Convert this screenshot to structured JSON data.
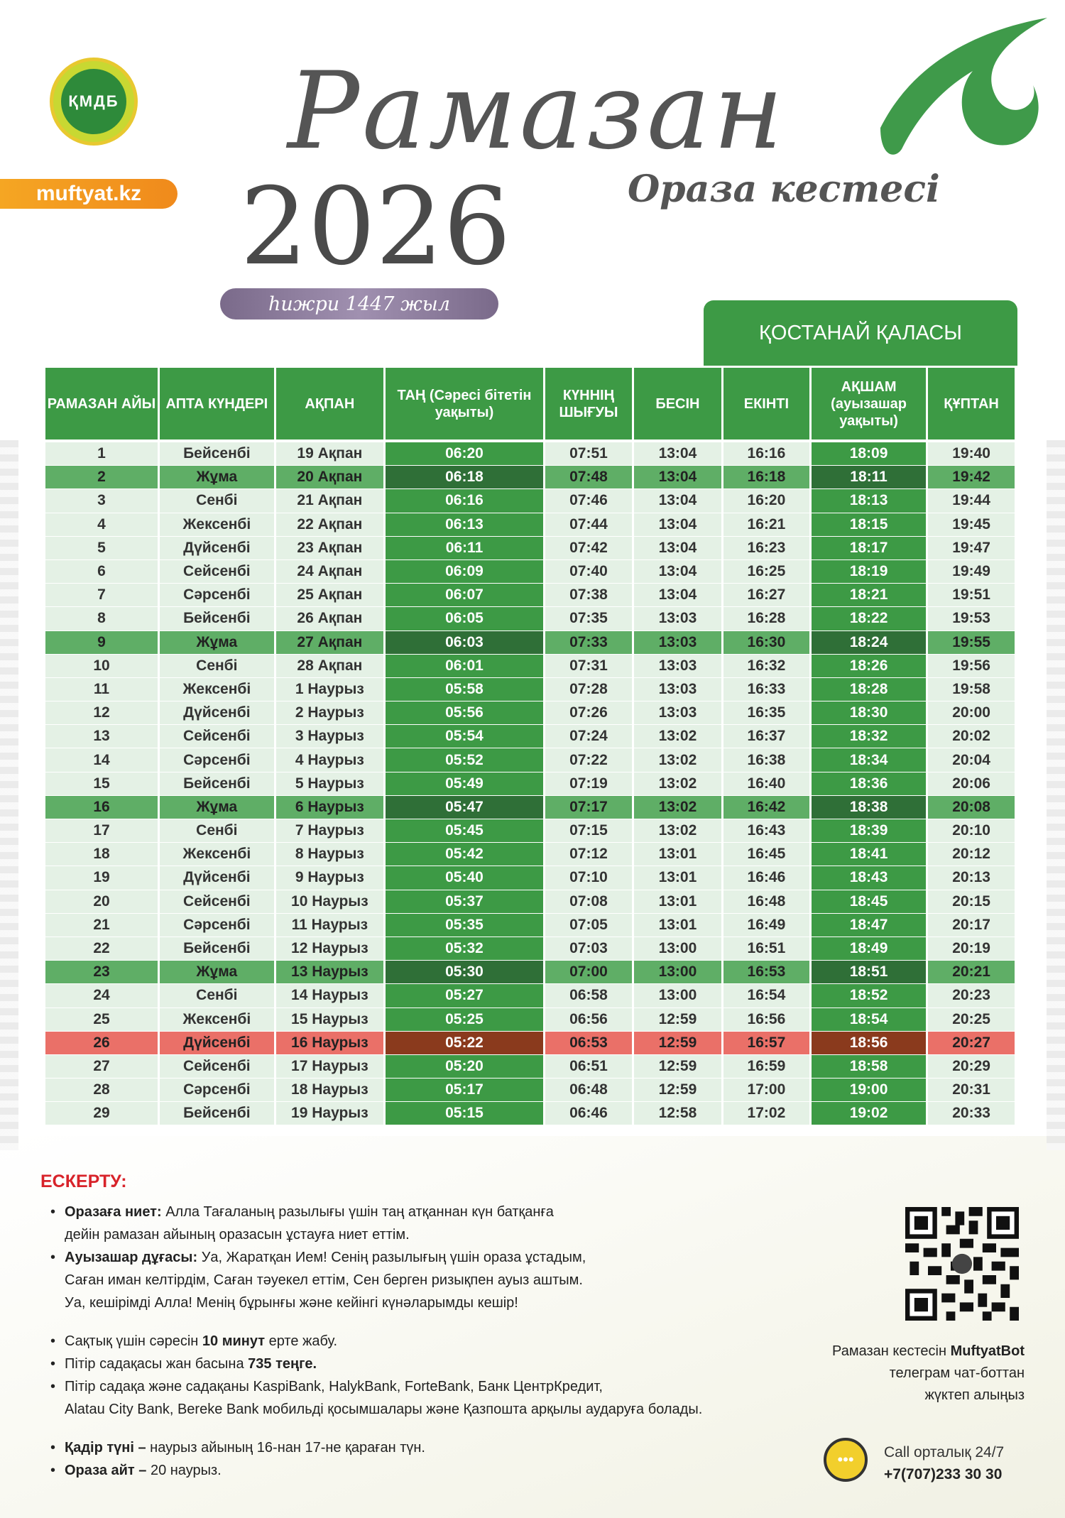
{
  "header": {
    "logo_text": "ҚМДБ",
    "site": "muftyat.kz",
    "title": "Рамазан",
    "year": "2026",
    "subtitle": "Ораза кестесі",
    "hijri": "һижри 1447 жыл",
    "city": "ҚОСТАНАЙ ҚАЛАСЫ"
  },
  "table": {
    "columns": [
      "РАМАЗАН АЙЫ",
      "АПТА КҮНДЕРІ",
      "АҚПАН",
      "ТАҢ (Сәресі бітетін уақыты)",
      "КҮННІҢ ШЫҒУЫ",
      "БЕСІН",
      "ЕКІНТІ",
      "АҚШАМ (ауызашар уақыты)",
      "ҚҰПТАН"
    ],
    "highlight_columns": [
      3,
      7
    ],
    "colors": {
      "green": "#3d9a45",
      "light": "#e4f1e5",
      "friday": "#5fae66",
      "highlight": "#ea7068",
      "highlight_dark": "#8a3a1d"
    },
    "rows": [
      {
        "type": "normal",
        "cells": [
          "1",
          "Бейсенбі",
          "19 Ақпан",
          "06:20",
          "07:51",
          "13:04",
          "16:16",
          "18:09",
          "19:40"
        ]
      },
      {
        "type": "friday",
        "cells": [
          "2",
          "Жұма",
          "20 Ақпан",
          "06:18",
          "07:48",
          "13:04",
          "16:18",
          "18:11",
          "19:42"
        ]
      },
      {
        "type": "normal",
        "cells": [
          "3",
          "Сенбі",
          "21 Ақпан",
          "06:16",
          "07:46",
          "13:04",
          "16:20",
          "18:13",
          "19:44"
        ]
      },
      {
        "type": "normal",
        "cells": [
          "4",
          "Жексенбі",
          "22 Ақпан",
          "06:13",
          "07:44",
          "13:04",
          "16:21",
          "18:15",
          "19:45"
        ]
      },
      {
        "type": "normal",
        "cells": [
          "5",
          "Дүйсенбі",
          "23 Ақпан",
          "06:11",
          "07:42",
          "13:04",
          "16:23",
          "18:17",
          "19:47"
        ]
      },
      {
        "type": "normal",
        "cells": [
          "6",
          "Сейсенбі",
          "24 Ақпан",
          "06:09",
          "07:40",
          "13:04",
          "16:25",
          "18:19",
          "19:49"
        ]
      },
      {
        "type": "normal",
        "cells": [
          "7",
          "Сәрсенбі",
          "25 Ақпан",
          "06:07",
          "07:38",
          "13:04",
          "16:27",
          "18:21",
          "19:51"
        ]
      },
      {
        "type": "normal",
        "cells": [
          "8",
          "Бейсенбі",
          "26 Ақпан",
          "06:05",
          "07:35",
          "13:03",
          "16:28",
          "18:22",
          "19:53"
        ]
      },
      {
        "type": "friday",
        "cells": [
          "9",
          "Жұма",
          "27 Ақпан",
          "06:03",
          "07:33",
          "13:03",
          "16:30",
          "18:24",
          "19:55"
        ]
      },
      {
        "type": "normal",
        "cells": [
          "10",
          "Сенбі",
          "28 Ақпан",
          "06:01",
          "07:31",
          "13:03",
          "16:32",
          "18:26",
          "19:56"
        ]
      },
      {
        "type": "normal",
        "cells": [
          "11",
          "Жексенбі",
          "1 Наурыз",
          "05:58",
          "07:28",
          "13:03",
          "16:33",
          "18:28",
          "19:58"
        ]
      },
      {
        "type": "normal",
        "cells": [
          "12",
          "Дүйсенбі",
          "2 Наурыз",
          "05:56",
          "07:26",
          "13:03",
          "16:35",
          "18:30",
          "20:00"
        ]
      },
      {
        "type": "normal",
        "cells": [
          "13",
          "Сейсенбі",
          "3 Наурыз",
          "05:54",
          "07:24",
          "13:02",
          "16:37",
          "18:32",
          "20:02"
        ]
      },
      {
        "type": "normal",
        "cells": [
          "14",
          "Сәрсенбі",
          "4 Наурыз",
          "05:52",
          "07:22",
          "13:02",
          "16:38",
          "18:34",
          "20:04"
        ]
      },
      {
        "type": "normal",
        "cells": [
          "15",
          "Бейсенбі",
          "5 Наурыз",
          "05:49",
          "07:19",
          "13:02",
          "16:40",
          "18:36",
          "20:06"
        ]
      },
      {
        "type": "friday",
        "cells": [
          "16",
          "Жұма",
          "6 Наурыз",
          "05:47",
          "07:17",
          "13:02",
          "16:42",
          "18:38",
          "20:08"
        ]
      },
      {
        "type": "normal",
        "cells": [
          "17",
          "Сенбі",
          "7 Наурыз",
          "05:45",
          "07:15",
          "13:02",
          "16:43",
          "18:39",
          "20:10"
        ]
      },
      {
        "type": "normal",
        "cells": [
          "18",
          "Жексенбі",
          "8 Наурыз",
          "05:42",
          "07:12",
          "13:01",
          "16:45",
          "18:41",
          "20:12"
        ]
      },
      {
        "type": "normal",
        "cells": [
          "19",
          "Дүйсенбі",
          "9 Наурыз",
          "05:40",
          "07:10",
          "13:01",
          "16:46",
          "18:43",
          "20:13"
        ]
      },
      {
        "type": "normal",
        "cells": [
          "20",
          "Сейсенбі",
          "10 Наурыз",
          "05:37",
          "07:08",
          "13:01",
          "16:48",
          "18:45",
          "20:15"
        ]
      },
      {
        "type": "normal",
        "cells": [
          "21",
          "Сәрсенбі",
          "11 Наурыз",
          "05:35",
          "07:05",
          "13:01",
          "16:49",
          "18:47",
          "20:17"
        ]
      },
      {
        "type": "normal",
        "cells": [
          "22",
          "Бейсенбі",
          "12 Наурыз",
          "05:32",
          "07:03",
          "13:00",
          "16:51",
          "18:49",
          "20:19"
        ]
      },
      {
        "type": "friday",
        "cells": [
          "23",
          "Жұма",
          "13 Наурыз",
          "05:30",
          "07:00",
          "13:00",
          "16:53",
          "18:51",
          "20:21"
        ]
      },
      {
        "type": "normal",
        "cells": [
          "24",
          "Сенбі",
          "14 Наурыз",
          "05:27",
          "06:58",
          "13:00",
          "16:54",
          "18:52",
          "20:23"
        ]
      },
      {
        "type": "normal",
        "cells": [
          "25",
          "Жексенбі",
          "15 Наурыз",
          "05:25",
          "06:56",
          "12:59",
          "16:56",
          "18:54",
          "20:25"
        ]
      },
      {
        "type": "highlight",
        "cells": [
          "26",
          "Дүйсенбі",
          "16 Наурыз",
          "05:22",
          "06:53",
          "12:59",
          "16:57",
          "18:56",
          "20:27"
        ]
      },
      {
        "type": "normal",
        "cells": [
          "27",
          "Сейсенбі",
          "17 Наурыз",
          "05:20",
          "06:51",
          "12:59",
          "16:59",
          "18:58",
          "20:29"
        ]
      },
      {
        "type": "normal",
        "cells": [
          "28",
          "Сәрсенбі",
          "18 Наурыз",
          "05:17",
          "06:48",
          "12:59",
          "17:00",
          "19:00",
          "20:31"
        ]
      },
      {
        "type": "normal",
        "cells": [
          "29",
          "Бейсенбі",
          "19 Наурыз",
          "05:15",
          "06:46",
          "12:58",
          "17:02",
          "19:02",
          "20:33"
        ]
      }
    ]
  },
  "notes": {
    "title": "ЕСКЕРТУ:",
    "niet_label": "Оразаға ниет:",
    "niet_1": " Алла Тағаланың разылығы үшін таң атқаннан күн батқанға",
    "niet_2": "дейін рамазан айының оразасын ұстауға ниет еттім.",
    "dua_label": "Ауызашар дұғасы:",
    "dua_1": " Уа, Жаратқан Ием! Сенің разылығың үшін ораза ұстадым,",
    "dua_2": "Саған иман келтірдім, Саған тәуекел еттім, Сен берген ризықпен ауыз аштым.",
    "dua_3": "Уа, кешірімді Алла! Менің бұрынғы және кейінгі күнәларымды кешір!",
    "sahur_a": "Сақтық үшін сәресін ",
    "sahur_b": "10 минут",
    "sahur_c": " ерте жабу.",
    "fitr_a": "Пітір садақасы жан басына ",
    "fitr_b": "735 теңге.",
    "banks_1": "Пітір садақа және садақаны KaspiBank, HalykBank, ForteBank, Банк ЦентрКредит,",
    "banks_2": "Alatau City Bank, Bereke Bank мобильді қосымшалары және Қазпошта арқылы аударуға болады.",
    "qadr_label": "Қадір түні –",
    "qadr": " наурыз айының 16-нан 17-не қараған түн.",
    "ait_label": "Ораза айт –",
    "ait": " 20 наурыз."
  },
  "bot": {
    "line1_a": "Рамазан кестесін ",
    "line1_b": "MuftyatBot",
    "line2": "телеграм чат-боттан",
    "line3": "жүктеп алыңыз"
  },
  "call": {
    "label": "Call орталық 24/7",
    "phone": "+7(707)233 30 30",
    "icon": "headset-chat-icon"
  }
}
